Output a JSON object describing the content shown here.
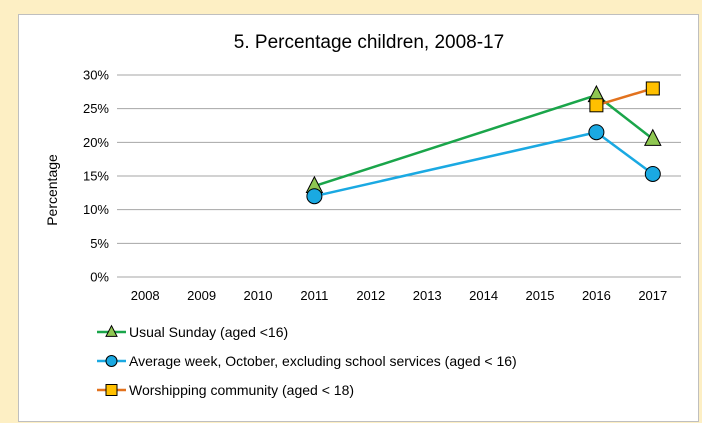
{
  "chart_data": {
    "type": "line",
    "title": "5. Percentage children, 2008-17",
    "xlabel": "",
    "ylabel": "Percentage",
    "categories": [
      "2008",
      "2009",
      "2010",
      "2011",
      "2012",
      "2013",
      "2014",
      "2015",
      "2016",
      "2017"
    ],
    "ylim": [
      0,
      30
    ],
    "yticks": [
      "0%",
      "5%",
      "10%",
      "15%",
      "20%",
      "25%",
      "30%"
    ],
    "grid": true,
    "legend_position": "bottom",
    "series": [
      {
        "name": "Usual Sunday (aged <16)",
        "color": "#1aa54a",
        "marker": "triangle",
        "marker_fill": "#8fc752",
        "values": [
          null,
          null,
          null,
          13.5,
          null,
          null,
          null,
          null,
          27,
          20.5
        ]
      },
      {
        "name": "Average week, October, excluding school services (aged < 16)",
        "color": "#1aa9e2",
        "marker": "circle",
        "marker_fill": "#1aa9e2",
        "values": [
          null,
          null,
          null,
          12,
          null,
          null,
          null,
          null,
          21.5,
          15.3
        ]
      },
      {
        "name": "Worshipping community (aged < 18)",
        "color": "#e2721e",
        "marker": "square",
        "marker_fill": "#ffc000",
        "values": [
          null,
          null,
          null,
          null,
          null,
          null,
          null,
          null,
          25.5,
          28
        ]
      }
    ]
  }
}
